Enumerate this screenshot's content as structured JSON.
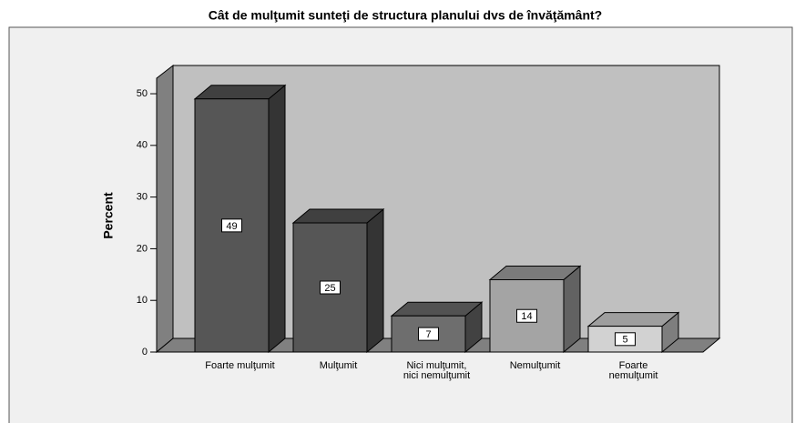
{
  "chart_data": {
    "type": "bar3d",
    "title": "Cât de mulţumit sunteţi de structura planului dvs de învăţământ?",
    "y_label": "Percent",
    "categories": [
      "Foarte mulţumit",
      "Mulţumit",
      "Nici mulţumit, nici nemulţumit",
      "Nemulţumit",
      "Foarte nemulţumit"
    ],
    "values": [
      49,
      25,
      7,
      14,
      5
    ],
    "colors": [
      "#565656",
      "#565656",
      "#6e6e6e",
      "#a4a4a4",
      "#d2d2d2"
    ],
    "ylim": [
      0,
      53
    ],
    "yticks": [
      0,
      10,
      20,
      30,
      40,
      50
    ]
  }
}
